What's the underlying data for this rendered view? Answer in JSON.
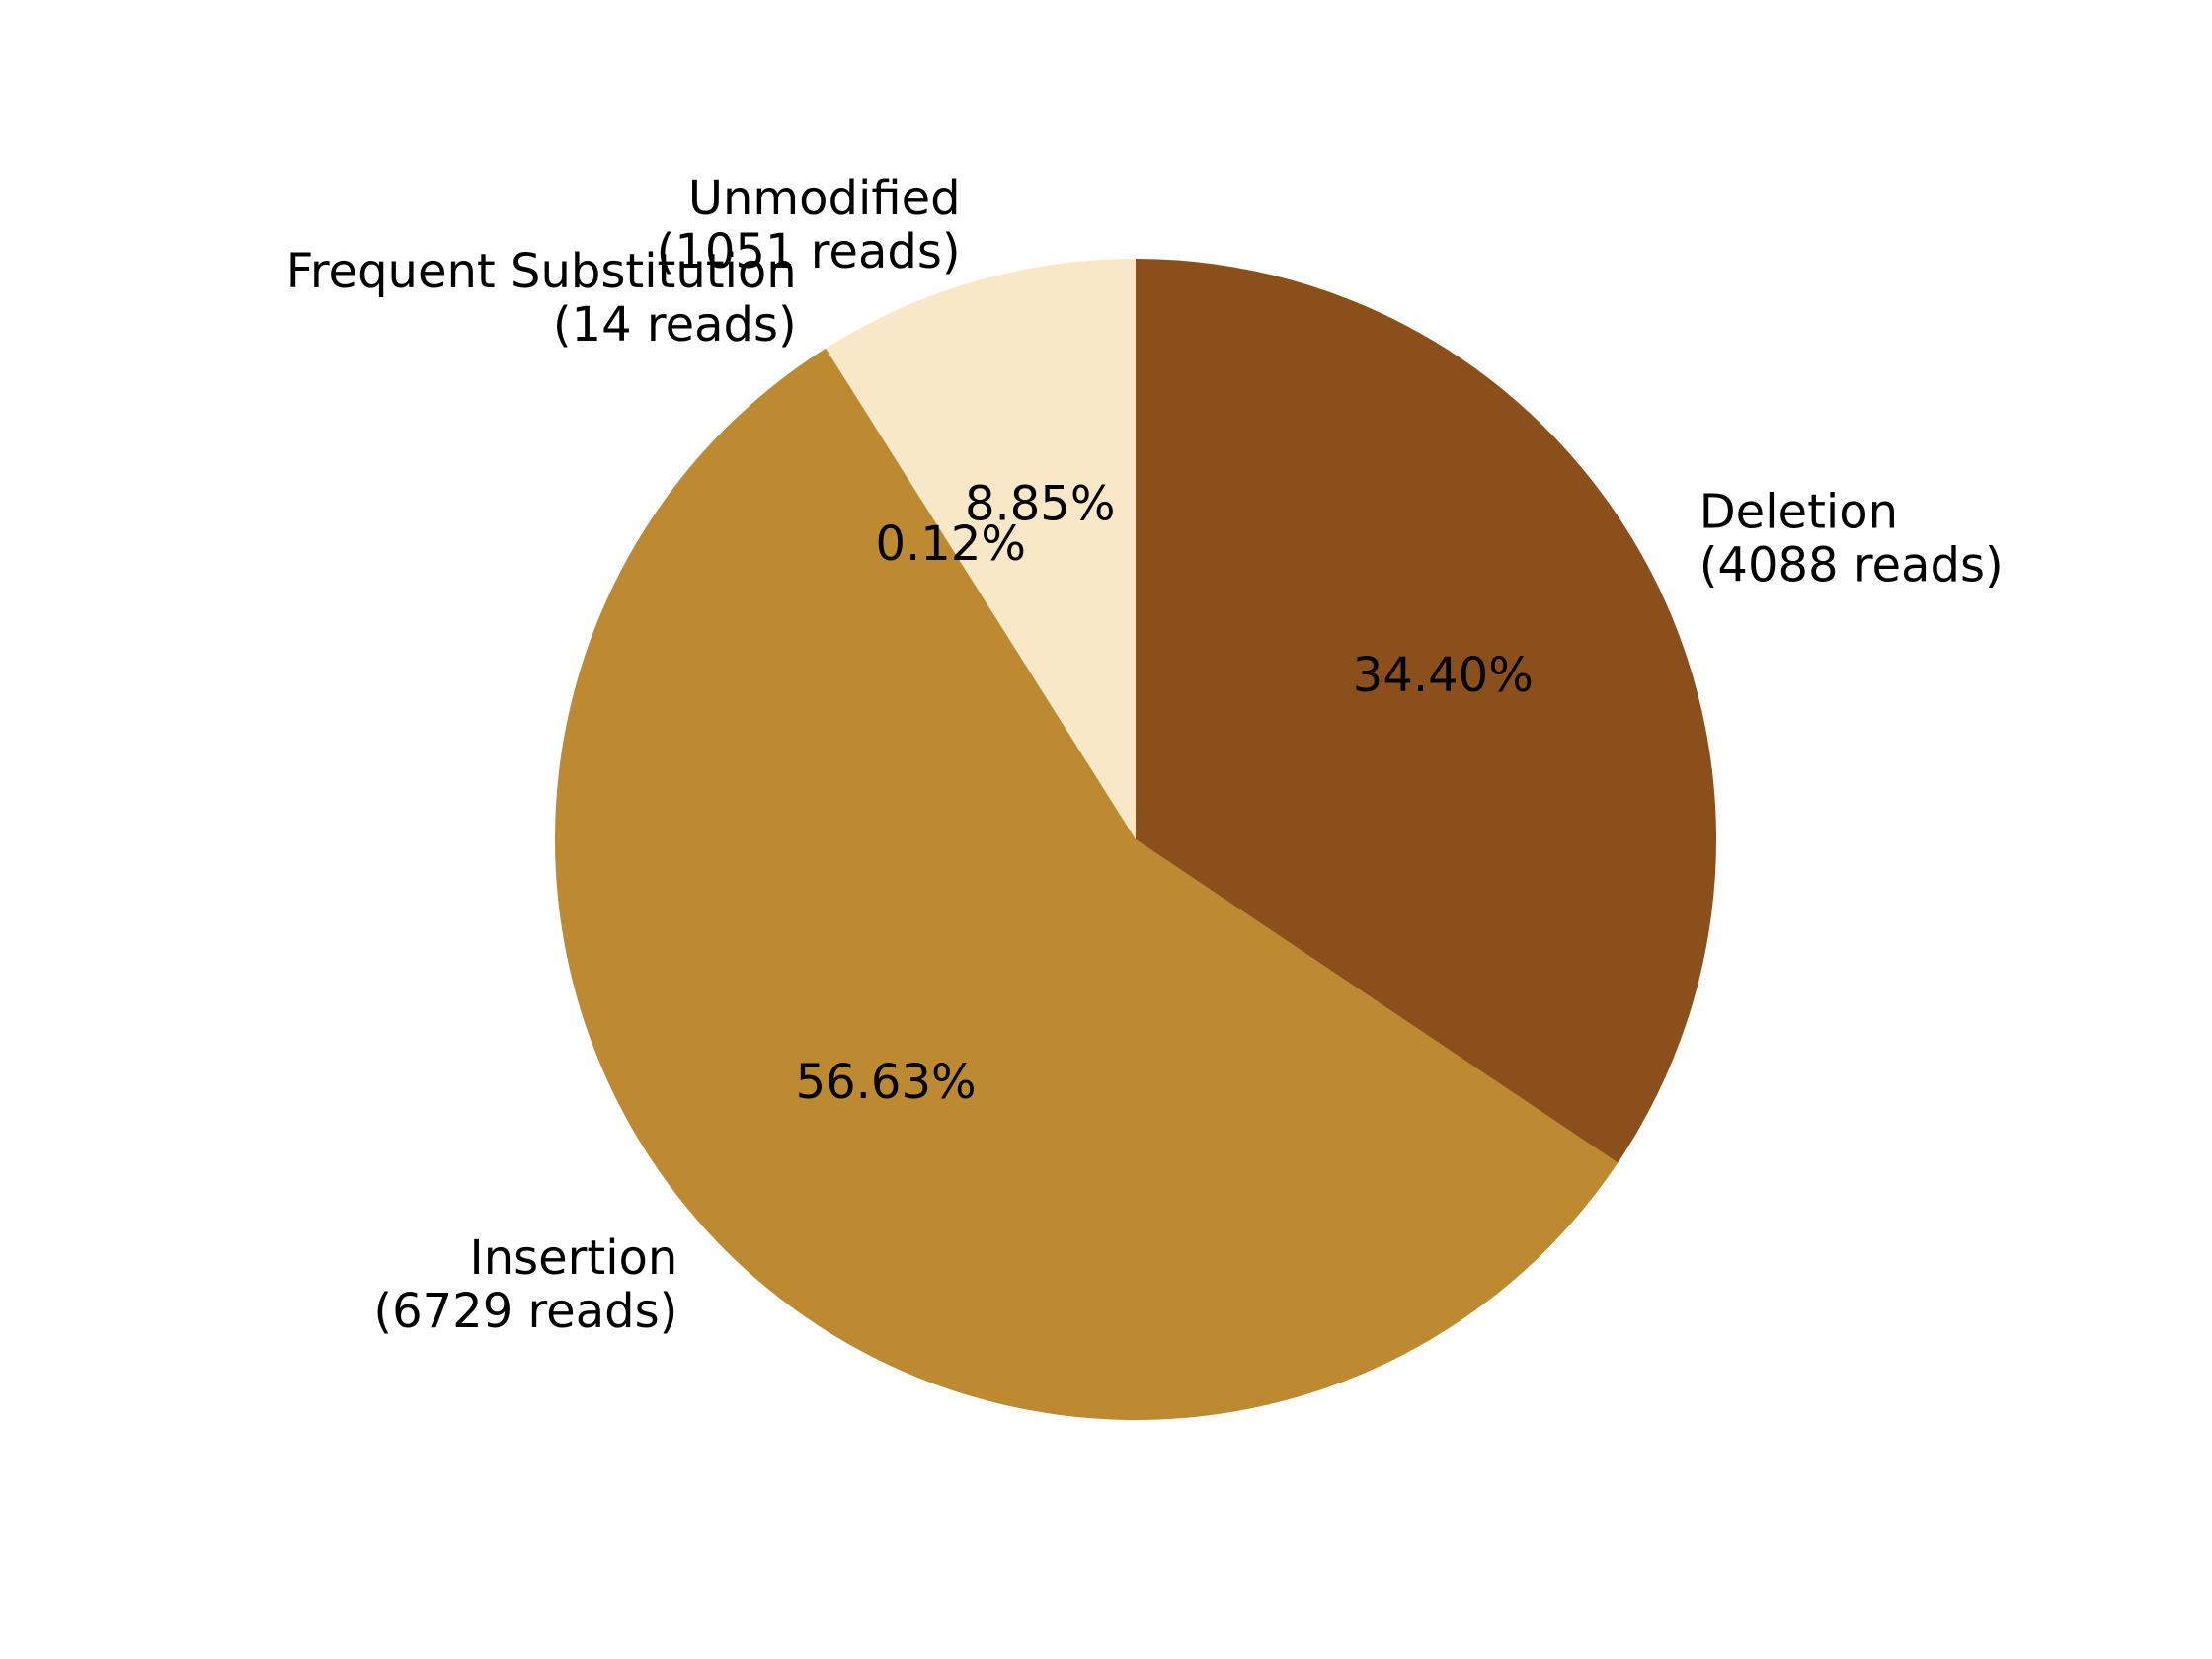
{
  "chart_data": {
    "type": "pie",
    "title": "",
    "slices": [
      {
        "name": "Unmodified",
        "reads_label": "(1051 reads)",
        "value": 1051,
        "percent_label": "8.85%",
        "color": "#F8E8C8"
      },
      {
        "name": "Frequent Substitution",
        "reads_label": "(14 reads)",
        "value": 14,
        "percent_label": "0.12%",
        "color": "#F8E8C8"
      },
      {
        "name": "Insertion",
        "reads_label": "(6729 reads)",
        "value": 6729,
        "percent_label": "56.63%",
        "color": "#BE8A31"
      },
      {
        "name": "Deletion",
        "reads_label": "(4088 reads)",
        "value": 4088,
        "percent_label": "34.40%",
        "color": "#8B4F1B"
      }
    ],
    "start_angle_deg": 90,
    "direction": "counterclockwise"
  }
}
